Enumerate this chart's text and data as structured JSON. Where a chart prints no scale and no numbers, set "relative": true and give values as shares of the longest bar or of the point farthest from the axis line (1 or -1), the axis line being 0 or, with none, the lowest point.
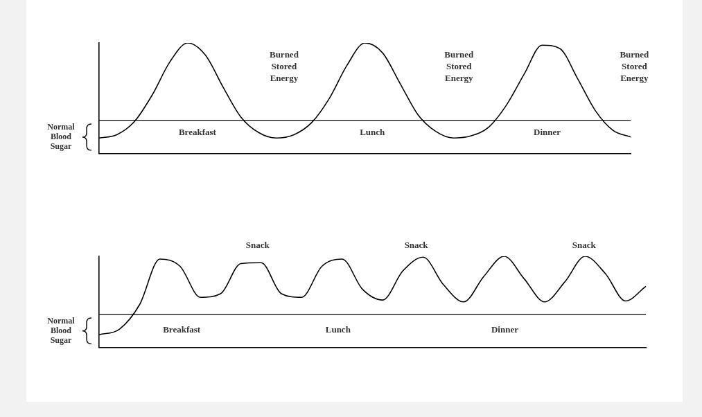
{
  "chart_data": [
    {
      "type": "line",
      "relative": true,
      "marker": "none",
      "grid": false,
      "legend": false,
      "categories": [
        null,
        null,
        null,
        null,
        null,
        null,
        null,
        null,
        null,
        null,
        null,
        null,
        null,
        null,
        null,
        null,
        null,
        null,
        null,
        null,
        null,
        null,
        null,
        null,
        null,
        null,
        null,
        null,
        null,
        null,
        null
      ],
      "series": [
        {
          "color": "#000000",
          "values": [
            0.14,
            0.17,
            0.29,
            0.53,
            0.83,
            1.0,
            0.89,
            0.6,
            0.33,
            0.19,
            0.14,
            0.17,
            0.28,
            0.5,
            0.8,
            1.0,
            0.91,
            0.63,
            0.35,
            0.2,
            0.14,
            0.16,
            0.24,
            0.44,
            0.72,
            0.98,
            0.95,
            0.68,
            0.39,
            0.21,
            0.15
          ]
        }
      ],
      "ref_lines": [
        {
          "axis": "y",
          "value": 0.3,
          "label": "Normal Blood Sugar",
          "color": "#000000"
        }
      ],
      "annotations": [
        "Breakfast",
        "Lunch",
        "Dinner",
        "Burned Stored Energy",
        "Burned Stored Energy",
        "Burned Stored Energy"
      ]
    },
    {
      "type": "line",
      "relative": true,
      "marker": "none",
      "grid": false,
      "legend": false,
      "categories": [
        null,
        null,
        null,
        null,
        null,
        null,
        null,
        null,
        null,
        null,
        null,
        null,
        null,
        null,
        null,
        null,
        null,
        null,
        null,
        null,
        null,
        null,
        null,
        null,
        null,
        null,
        null,
        null
      ],
      "series": [
        {
          "color": "#000000",
          "values": [
            0.14,
            0.2,
            0.47,
            0.97,
            0.89,
            0.55,
            0.59,
            0.92,
            0.93,
            0.59,
            0.55,
            0.89,
            0.97,
            0.64,
            0.52,
            0.84,
            0.99,
            0.69,
            0.5,
            0.78,
            1.0,
            0.75,
            0.5,
            0.72,
            1.0,
            0.81,
            0.51,
            0.67
          ]
        }
      ],
      "ref_lines": [
        {
          "axis": "y",
          "value": 0.36,
          "label": "Normal Blood Sugar",
          "color": "#000000"
        }
      ],
      "annotations": [
        "Breakfast",
        "Lunch",
        "Dinner",
        "Snack",
        "Snack",
        "Snack"
      ]
    }
  ]
}
